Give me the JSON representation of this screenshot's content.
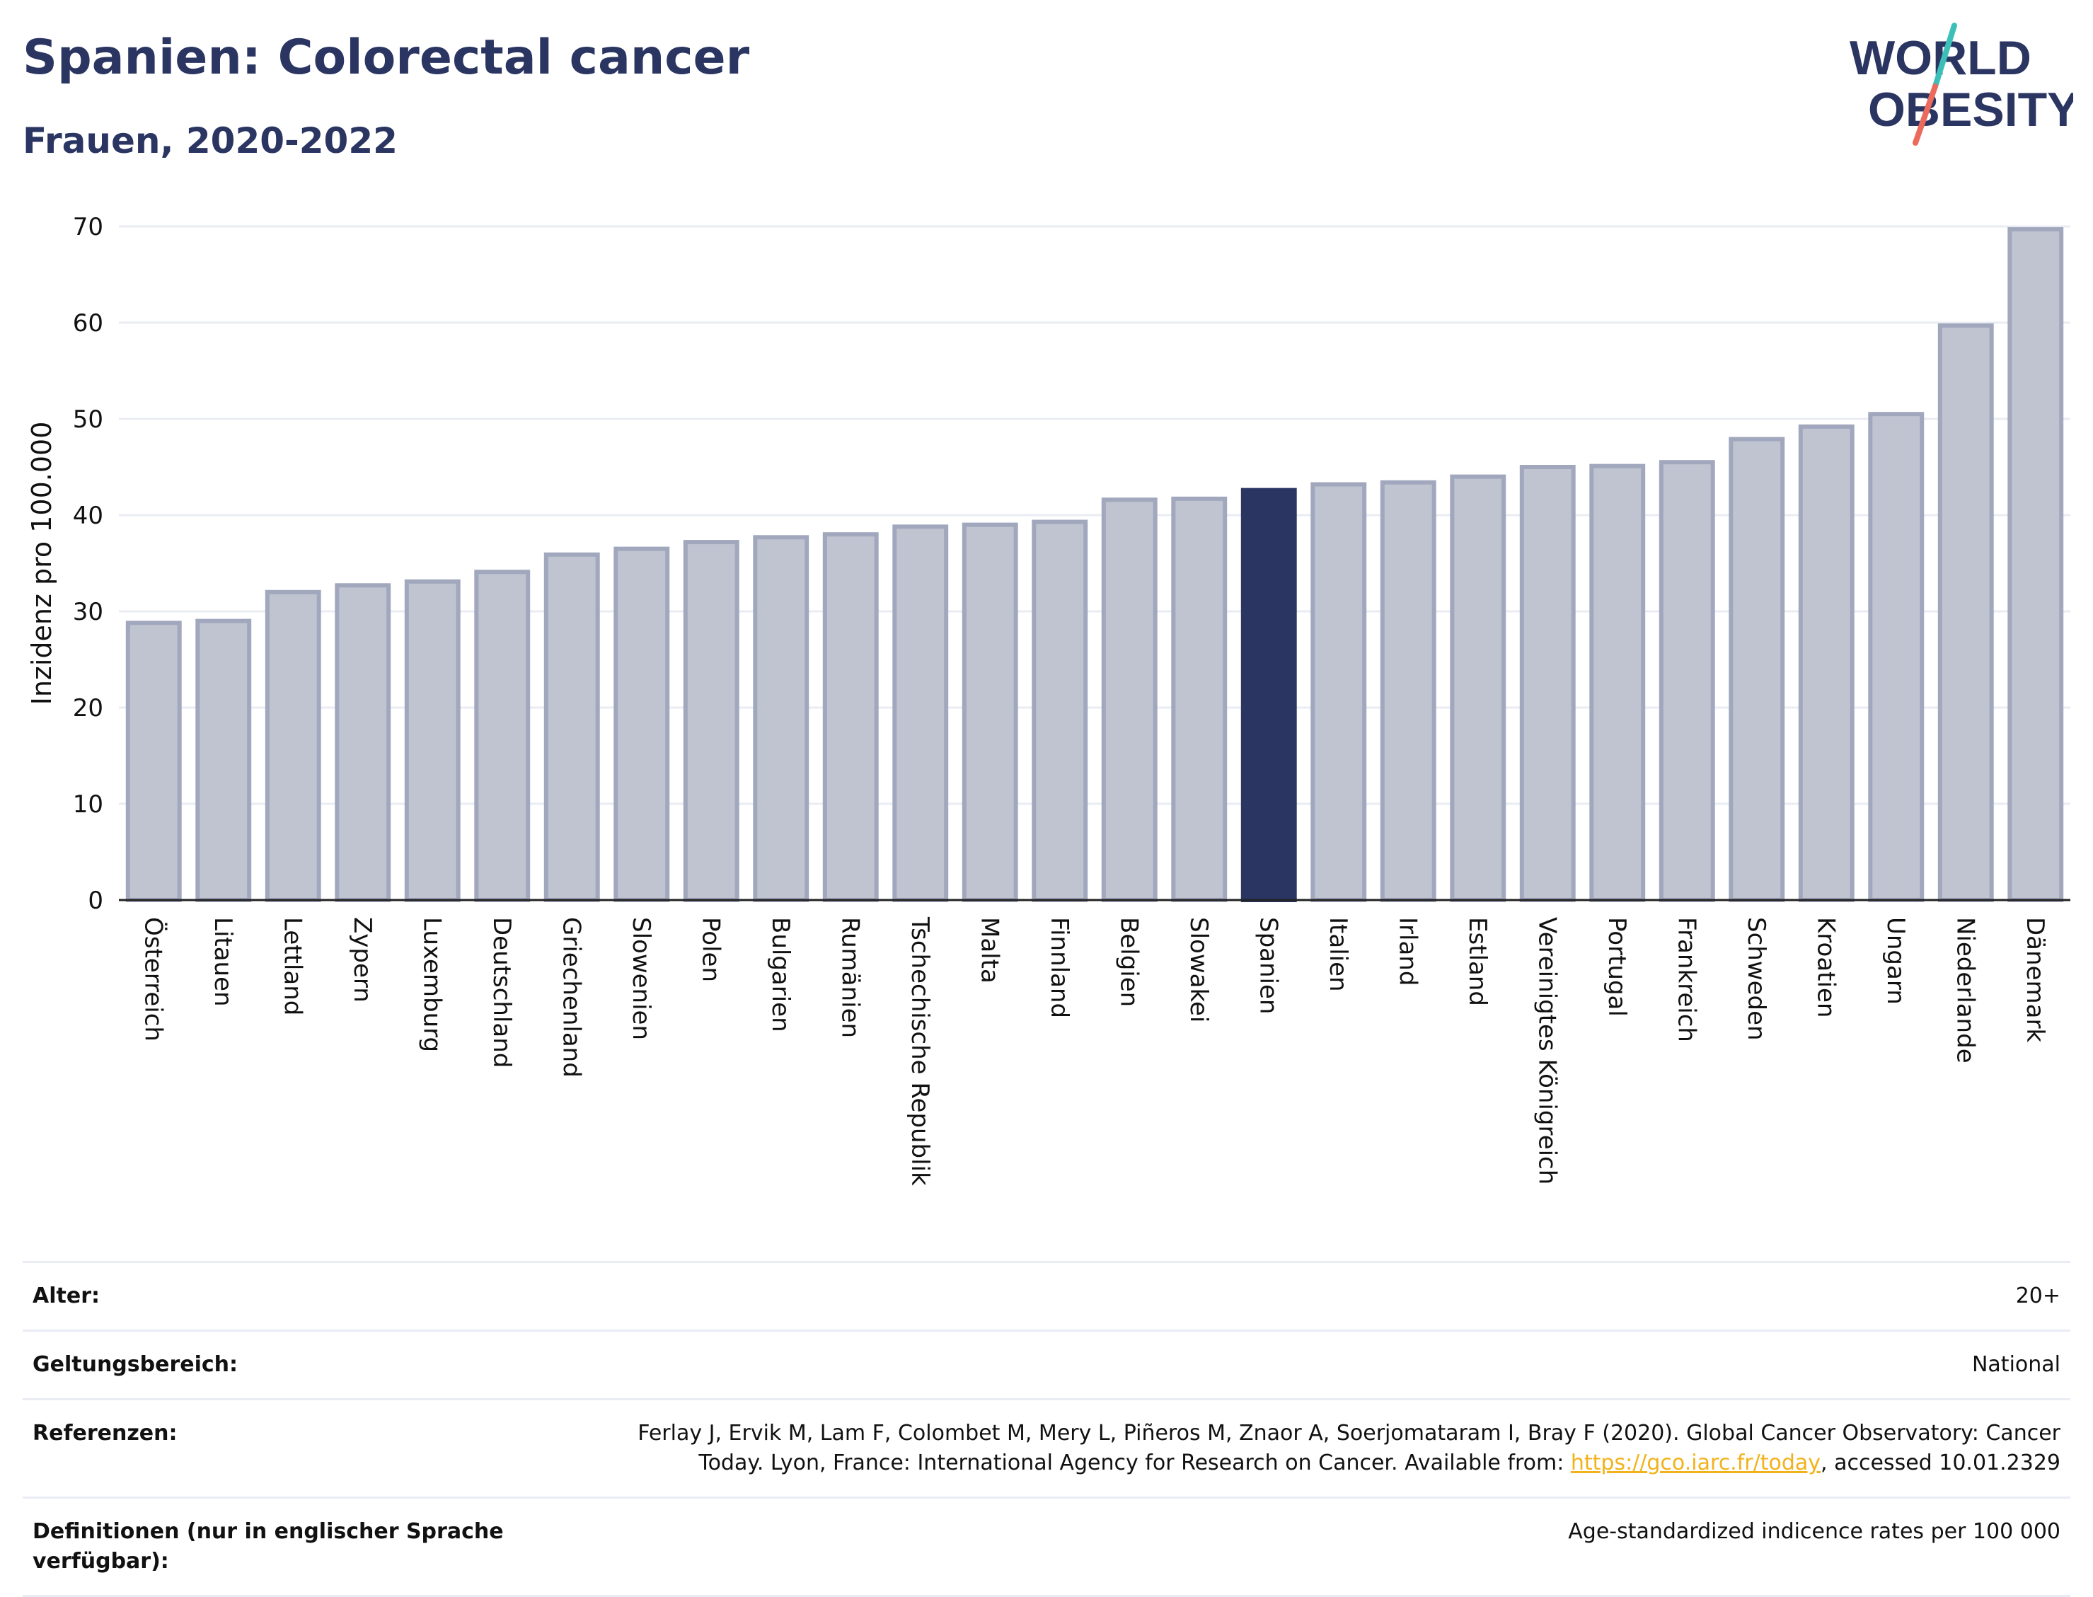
{
  "title": "Spanien: Colorectal cancer",
  "subtitle": "Frauen, 2020-2022",
  "logo": {
    "line1": "WORLD",
    "line2": "OBESITY"
  },
  "colors": {
    "highlight": "#2b3562",
    "bar": "#c0c4d1",
    "bar_border": "#a1a7bd",
    "grid": "#e9ecf2",
    "logo_teal": "#3bbfb8",
    "logo_coral": "#ec6a5c"
  },
  "chart_data": {
    "type": "bar",
    "ylabel": "Inzidenz pro 100.000",
    "ylim": [
      0,
      70
    ],
    "yticks": [
      0,
      10,
      20,
      30,
      40,
      50,
      60,
      70
    ],
    "grid": true,
    "highlight": "Spanien",
    "categories": [
      "Österreich",
      "Litauen",
      "Lettland",
      "Zypern",
      "Luxemburg",
      "Deutschland",
      "Griechenland",
      "Slowenien",
      "Polen",
      "Bulgarien",
      "Rumänien",
      "Tschechische Republik",
      "Malta",
      "Finnland",
      "Belgien",
      "Slowakei",
      "Spanien",
      "Italien",
      "Irland",
      "Estland",
      "Vereinigtes Königreich",
      "Portugal",
      "Frankreich",
      "Schweden",
      "Kroatien",
      "Ungarn",
      "Niederlande",
      "Dänemark"
    ],
    "values": [
      28.8,
      29.0,
      32.0,
      32.7,
      33.1,
      34.1,
      35.9,
      36.5,
      37.2,
      37.7,
      38.0,
      38.8,
      39.0,
      39.3,
      41.6,
      41.7,
      42.6,
      43.2,
      43.4,
      44.0,
      45.0,
      45.1,
      45.5,
      47.9,
      49.2,
      50.5,
      59.7,
      69.7
    ]
  },
  "meta": [
    {
      "label": "Alter:",
      "value": "20+"
    },
    {
      "label": "Geltungsbereich:",
      "value": "National"
    },
    {
      "label": "Referenzen:",
      "value_pre": "Ferlay J, Ervik M, Lam F, Colombet M, Mery L, Piñeros M, Znaor A, Soerjomataram I, Bray F (2020). Global Cancer Observatory: Cancer Today. Lyon, France: International Agency for Research on Cancer. Available from: ",
      "link": "https://gco.iarc.fr/today",
      "value_post": ", accessed 10.01.2329"
    },
    {
      "label": "Definitionen (nur in englischer Sprache verfügbar):",
      "value": "Age-standardized indicence rates per 100 000"
    }
  ]
}
